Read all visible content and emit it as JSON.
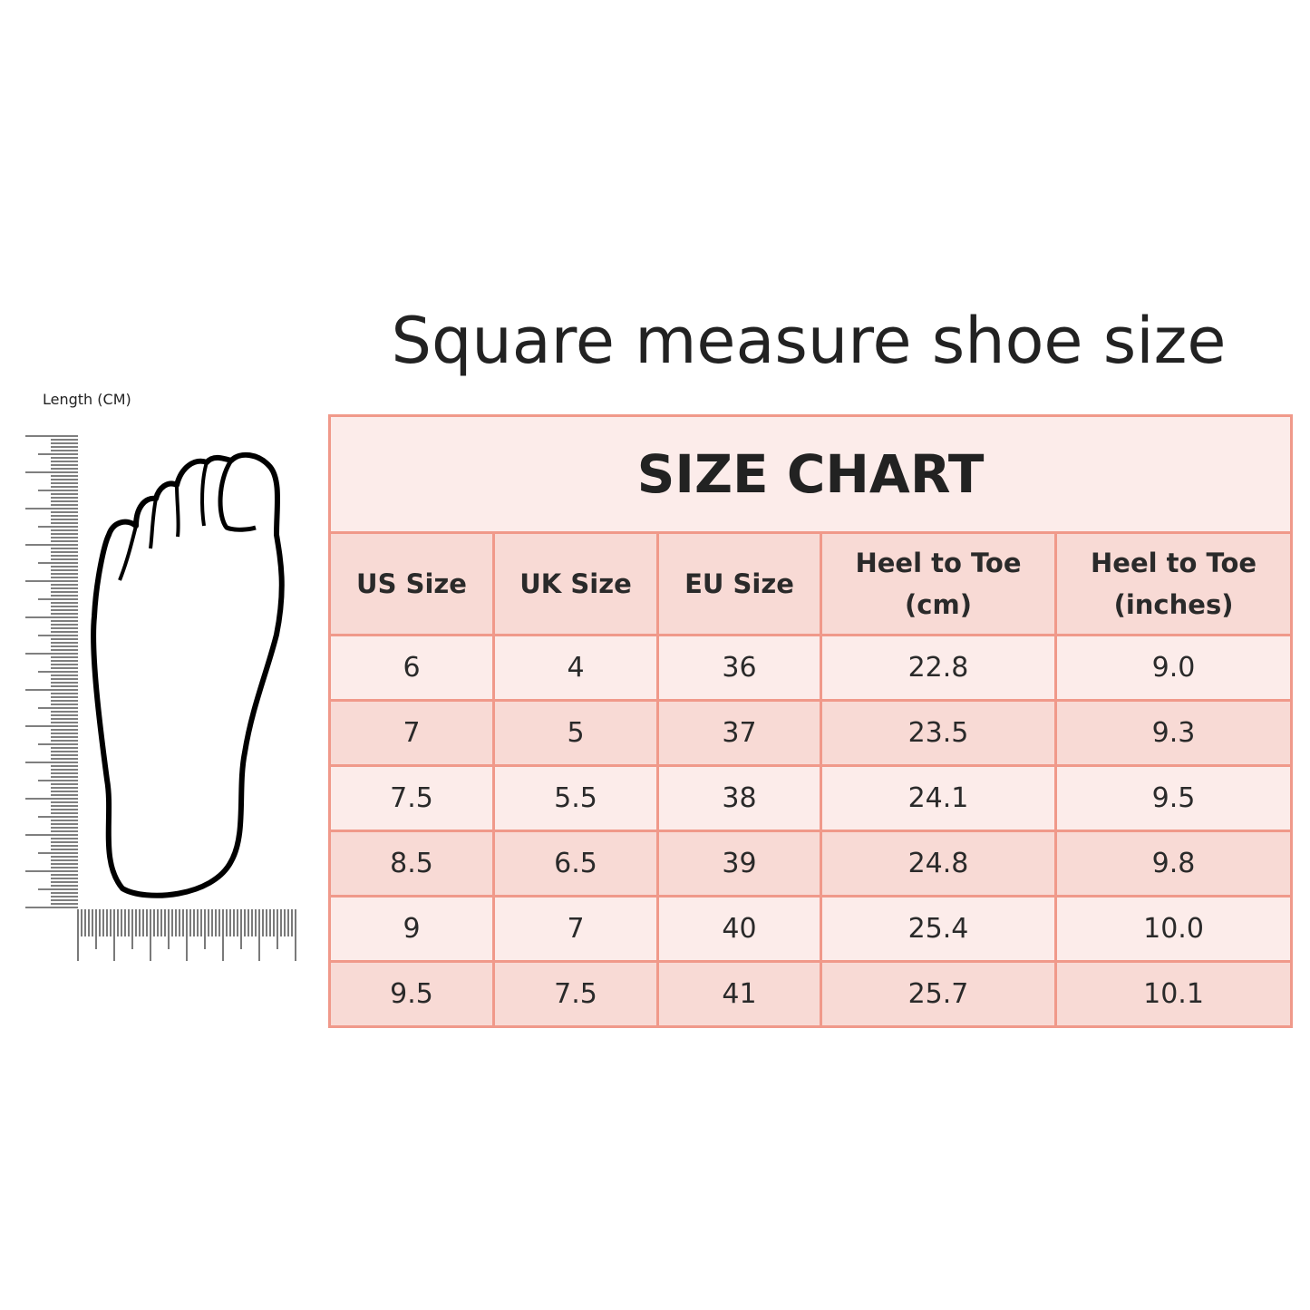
{
  "title": "Square measure shoe size",
  "length_label": "Length (CM)",
  "chart_title": "SIZE CHART",
  "colors": {
    "border": "#f0998a",
    "header_bg": "#f8dad5",
    "light_row": "#fcecea",
    "dark_row": "#f8dad5"
  },
  "columns": [
    {
      "line1": "US Size",
      "line2": ""
    },
    {
      "line1": "UK Size",
      "line2": ""
    },
    {
      "line1": "EU Size",
      "line2": ""
    },
    {
      "line1": "Heel to Toe",
      "line2": "(cm)"
    },
    {
      "line1": "Heel to Toe",
      "line2": "(inches)"
    }
  ],
  "rows": [
    [
      "6",
      "4",
      "36",
      "22.8",
      "9.0"
    ],
    [
      "7",
      "5",
      "37",
      "23.5",
      "9.3"
    ],
    [
      "7.5",
      "5.5",
      "38",
      "24.1",
      "9.5"
    ],
    [
      "8.5",
      "6.5",
      "39",
      "24.8",
      "9.8"
    ],
    [
      "9",
      "7",
      "40",
      "25.4",
      "10.0"
    ],
    [
      "9.5",
      "7.5",
      "41",
      "25.7",
      "10.1"
    ]
  ],
  "icons": [
    "foot-outline-icon",
    "ruler-icon"
  ]
}
